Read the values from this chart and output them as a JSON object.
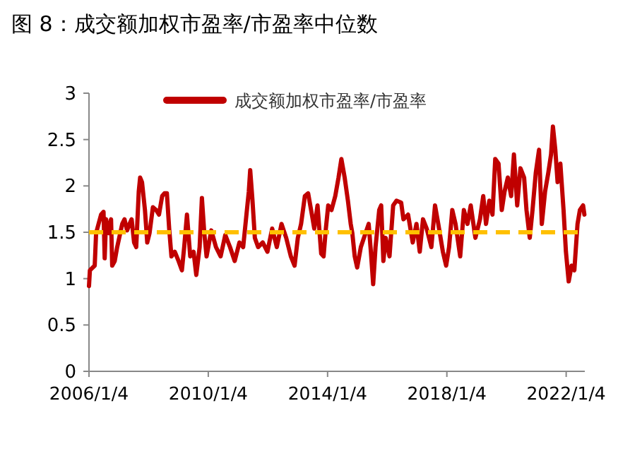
{
  "chart_data": {
    "type": "line",
    "title": "图 8：成交额加权市盈率/市盈率中位数",
    "x": [
      "2006-01-04",
      "2006-01-15",
      "2006-03-15",
      "2006-04-01",
      "2006-05-01",
      "2006-06-01",
      "2006-07-01",
      "2006-07-15",
      "2006-08-01",
      "2006-09-01",
      "2006-10-01",
      "2006-10-15",
      "2006-11-15",
      "2006-12-15",
      "2007-02-15",
      "2007-03-15",
      "2007-04-15",
      "2007-05-15",
      "2007-06-10",
      "2007-07-10",
      "2007-08-05",
      "2007-09-05",
      "2007-09-22",
      "2007-10-15",
      "2007-11-20",
      "2007-12-18",
      "2008-01-15",
      "2008-02-25",
      "2008-04-05",
      "2008-05-10",
      "2008-06-18",
      "2008-07-16",
      "2008-08-15",
      "2008-09-12",
      "2008-10-10",
      "2008-11-20",
      "2009-01-05",
      "2009-02-15",
      "2009-03-15",
      "2009-04-18",
      "2009-05-28",
      "2009-07-08",
      "2009-08-10",
      "2009-09-20",
      "2009-10-18",
      "2009-11-16",
      "2009-12-14",
      "2010-02-10",
      "2010-04-08",
      "2010-06-04",
      "2010-07-31",
      "2010-09-27",
      "2010-11-23",
      "2011-01-20",
      "2011-03-07",
      "2011-04-16",
      "2011-05-15",
      "2011-06-01",
      "2011-06-29",
      "2011-07-28",
      "2011-09-06",
      "2011-11-01",
      "2011-12-29",
      "2012-02-25",
      "2012-04-22",
      "2012-06-19",
      "2012-08-15",
      "2012-10-11",
      "2012-11-26",
      "2013-01-05",
      "2013-02-14",
      "2013-04-01",
      "2013-05-11",
      "2013-06-26",
      "2013-07-25",
      "2013-09-03",
      "2013-10-18",
      "2013-11-16",
      "2013-12-14",
      "2014-01-12",
      "2014-02-21",
      "2014-04-08",
      "2014-05-18",
      "2014-06-22",
      "2014-08-01",
      "2014-09-10",
      "2014-10-14",
      "2014-11-03",
      "2014-12-02",
      "2015-01-01",
      "2015-02-15",
      "2015-03-25",
      "2015-05-22",
      "2015-06-18",
      "2015-07-16",
      "2015-08-14",
      "2015-09-28",
      "2015-10-22",
      "2015-11-18",
      "2015-12-16",
      "2016-02-01",
      "2016-03-17",
      "2016-04-27",
      "2016-06-23",
      "2016-07-21",
      "2016-09-16",
      "2016-11-12",
      "2016-12-28",
      "2017-02-06",
      "2017-03-18",
      "2017-05-02",
      "2017-06-28",
      "2017-08-12",
      "2017-09-21",
      "2017-11-16",
      "2017-12-26",
      "2018-01-31",
      "2018-03-11",
      "2018-04-20",
      "2018-06-16",
      "2018-07-31",
      "2018-09-13",
      "2018-10-23",
      "2018-12-19",
      "2019-02-13",
      "2019-03-25",
      "2019-04-28",
      "2019-06-07",
      "2019-07-16",
      "2019-08-19",
      "2019-09-28",
      "2019-11-07",
      "2019-12-11",
      "2020-01-20",
      "2020-03-01",
      "2020-04-04",
      "2020-05-14",
      "2020-06-23",
      "2020-08-07",
      "2020-09-05",
      "2020-10-15",
      "2020-11-18",
      "2020-12-28",
      "2021-02-06",
      "2021-03-12",
      "2021-04-21",
      "2021-05-30",
      "2021-07-03",
      "2021-07-26",
      "2021-08-24",
      "2021-09-21",
      "2021-10-25",
      "2021-12-03",
      "2022-01-01",
      "2022-02-04",
      "2022-03-11",
      "2022-04-14",
      "2022-05-23",
      "2022-06-21",
      "2022-07-30",
      "2022-08-15"
    ],
    "series": [
      {
        "name": "成交额加权市盈率/市盈率",
        "color": "#c00000",
        "values": [
          0.92,
          1.09,
          1.14,
          1.49,
          1.59,
          1.69,
          1.72,
          1.22,
          1.64,
          1.49,
          1.64,
          1.14,
          1.19,
          1.34,
          1.59,
          1.64,
          1.52,
          1.59,
          1.64,
          1.39,
          1.34,
          1.94,
          2.09,
          2.04,
          1.74,
          1.39,
          1.49,
          1.77,
          1.74,
          1.69,
          1.89,
          1.92,
          1.92,
          1.54,
          1.24,
          1.29,
          1.19,
          1.09,
          1.34,
          1.69,
          1.24,
          1.29,
          1.04,
          1.34,
          1.87,
          1.49,
          1.24,
          1.52,
          1.34,
          1.24,
          1.47,
          1.34,
          1.19,
          1.39,
          1.34,
          1.69,
          1.94,
          2.17,
          1.84,
          1.44,
          1.34,
          1.39,
          1.29,
          1.54,
          1.34,
          1.59,
          1.44,
          1.24,
          1.14,
          1.44,
          1.59,
          1.89,
          1.92,
          1.69,
          1.54,
          1.79,
          1.27,
          1.24,
          1.54,
          1.79,
          1.74,
          1.89,
          2.09,
          2.29,
          2.09,
          1.84,
          1.59,
          1.49,
          1.24,
          1.12,
          1.34,
          1.44,
          1.59,
          1.29,
          0.94,
          1.34,
          1.74,
          1.79,
          1.19,
          1.44,
          1.24,
          1.79,
          1.84,
          1.82,
          1.64,
          1.69,
          1.39,
          1.59,
          1.29,
          1.64,
          1.54,
          1.34,
          1.79,
          1.59,
          1.29,
          1.14,
          1.34,
          1.74,
          1.59,
          1.24,
          1.74,
          1.59,
          1.79,
          1.44,
          1.64,
          1.89,
          1.59,
          1.84,
          1.69,
          2.29,
          2.24,
          1.74,
          1.94,
          2.09,
          1.89,
          2.34,
          1.79,
          2.19,
          2.09,
          1.74,
          1.44,
          1.74,
          2.14,
          2.39,
          1.59,
          1.94,
          2.14,
          2.34,
          2.64,
          2.39,
          2.04,
          2.24,
          1.74,
          1.29,
          0.97,
          1.14,
          1.09,
          1.59,
          1.74,
          1.79,
          1.69
        ]
      }
    ],
    "xlim": [
      "2006-01-04",
      "2022-08-20"
    ],
    "xticks": [
      {
        "value": "2006-01-04",
        "label": "2006/1/4"
      },
      {
        "value": "2010-01-04",
        "label": "2010/1/4"
      },
      {
        "value": "2014-01-04",
        "label": "2014/1/4"
      },
      {
        "value": "2018-01-04",
        "label": "2018/1/4"
      },
      {
        "value": "2022-01-04",
        "label": "2022/1/4"
      }
    ],
    "ylim": [
      0,
      3
    ],
    "yticks": [
      0,
      0.5,
      1,
      1.5,
      2,
      2.5,
      3
    ],
    "ref_lines": [
      {
        "axis": "y",
        "value": 1.5,
        "color": "#ffc000",
        "line_style": "dashed"
      }
    ],
    "legend": "top"
  }
}
